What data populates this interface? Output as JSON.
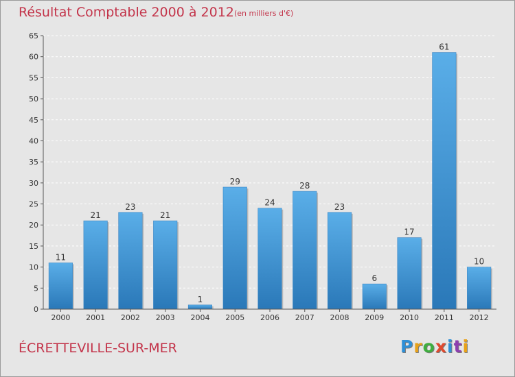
{
  "title": "Résultat Comptable 2000 à 2012",
  "subtitle": "(en milliers d'€)",
  "commune": "ÉCRETTEVILLE-SUR-MER",
  "logo": {
    "letters": [
      "P",
      "r",
      "o",
      "x",
      "i",
      "t",
      "i"
    ],
    "colors": [
      "#2f8fd6",
      "#e8a21b",
      "#3fae3f",
      "#e04a2f",
      "#2f8fd6",
      "#8c3fae",
      "#e8a21b"
    ]
  },
  "colors": {
    "bar_top": "#5aaee8",
    "bar_bottom": "#2a78b8",
    "grid": "#ffffff",
    "axis": "#555555",
    "text": "#333333",
    "accent": "#c3344a"
  },
  "chart_data": {
    "type": "bar",
    "title": "Résultat Comptable 2000 à 2012",
    "subtitle": "(en milliers d'€)",
    "categories": [
      "2000",
      "2001",
      "2002",
      "2003",
      "2004",
      "2005",
      "2006",
      "2007",
      "2008",
      "2009",
      "2010",
      "2011",
      "2012"
    ],
    "values": [
      11,
      21,
      23,
      21,
      1,
      29,
      24,
      28,
      23,
      6,
      17,
      61,
      10
    ],
    "ylim": [
      0,
      65
    ],
    "yticks": [
      0,
      5,
      10,
      15,
      20,
      25,
      30,
      35,
      40,
      45,
      50,
      55,
      60,
      65
    ],
    "grid": true,
    "data_labels": true
  }
}
